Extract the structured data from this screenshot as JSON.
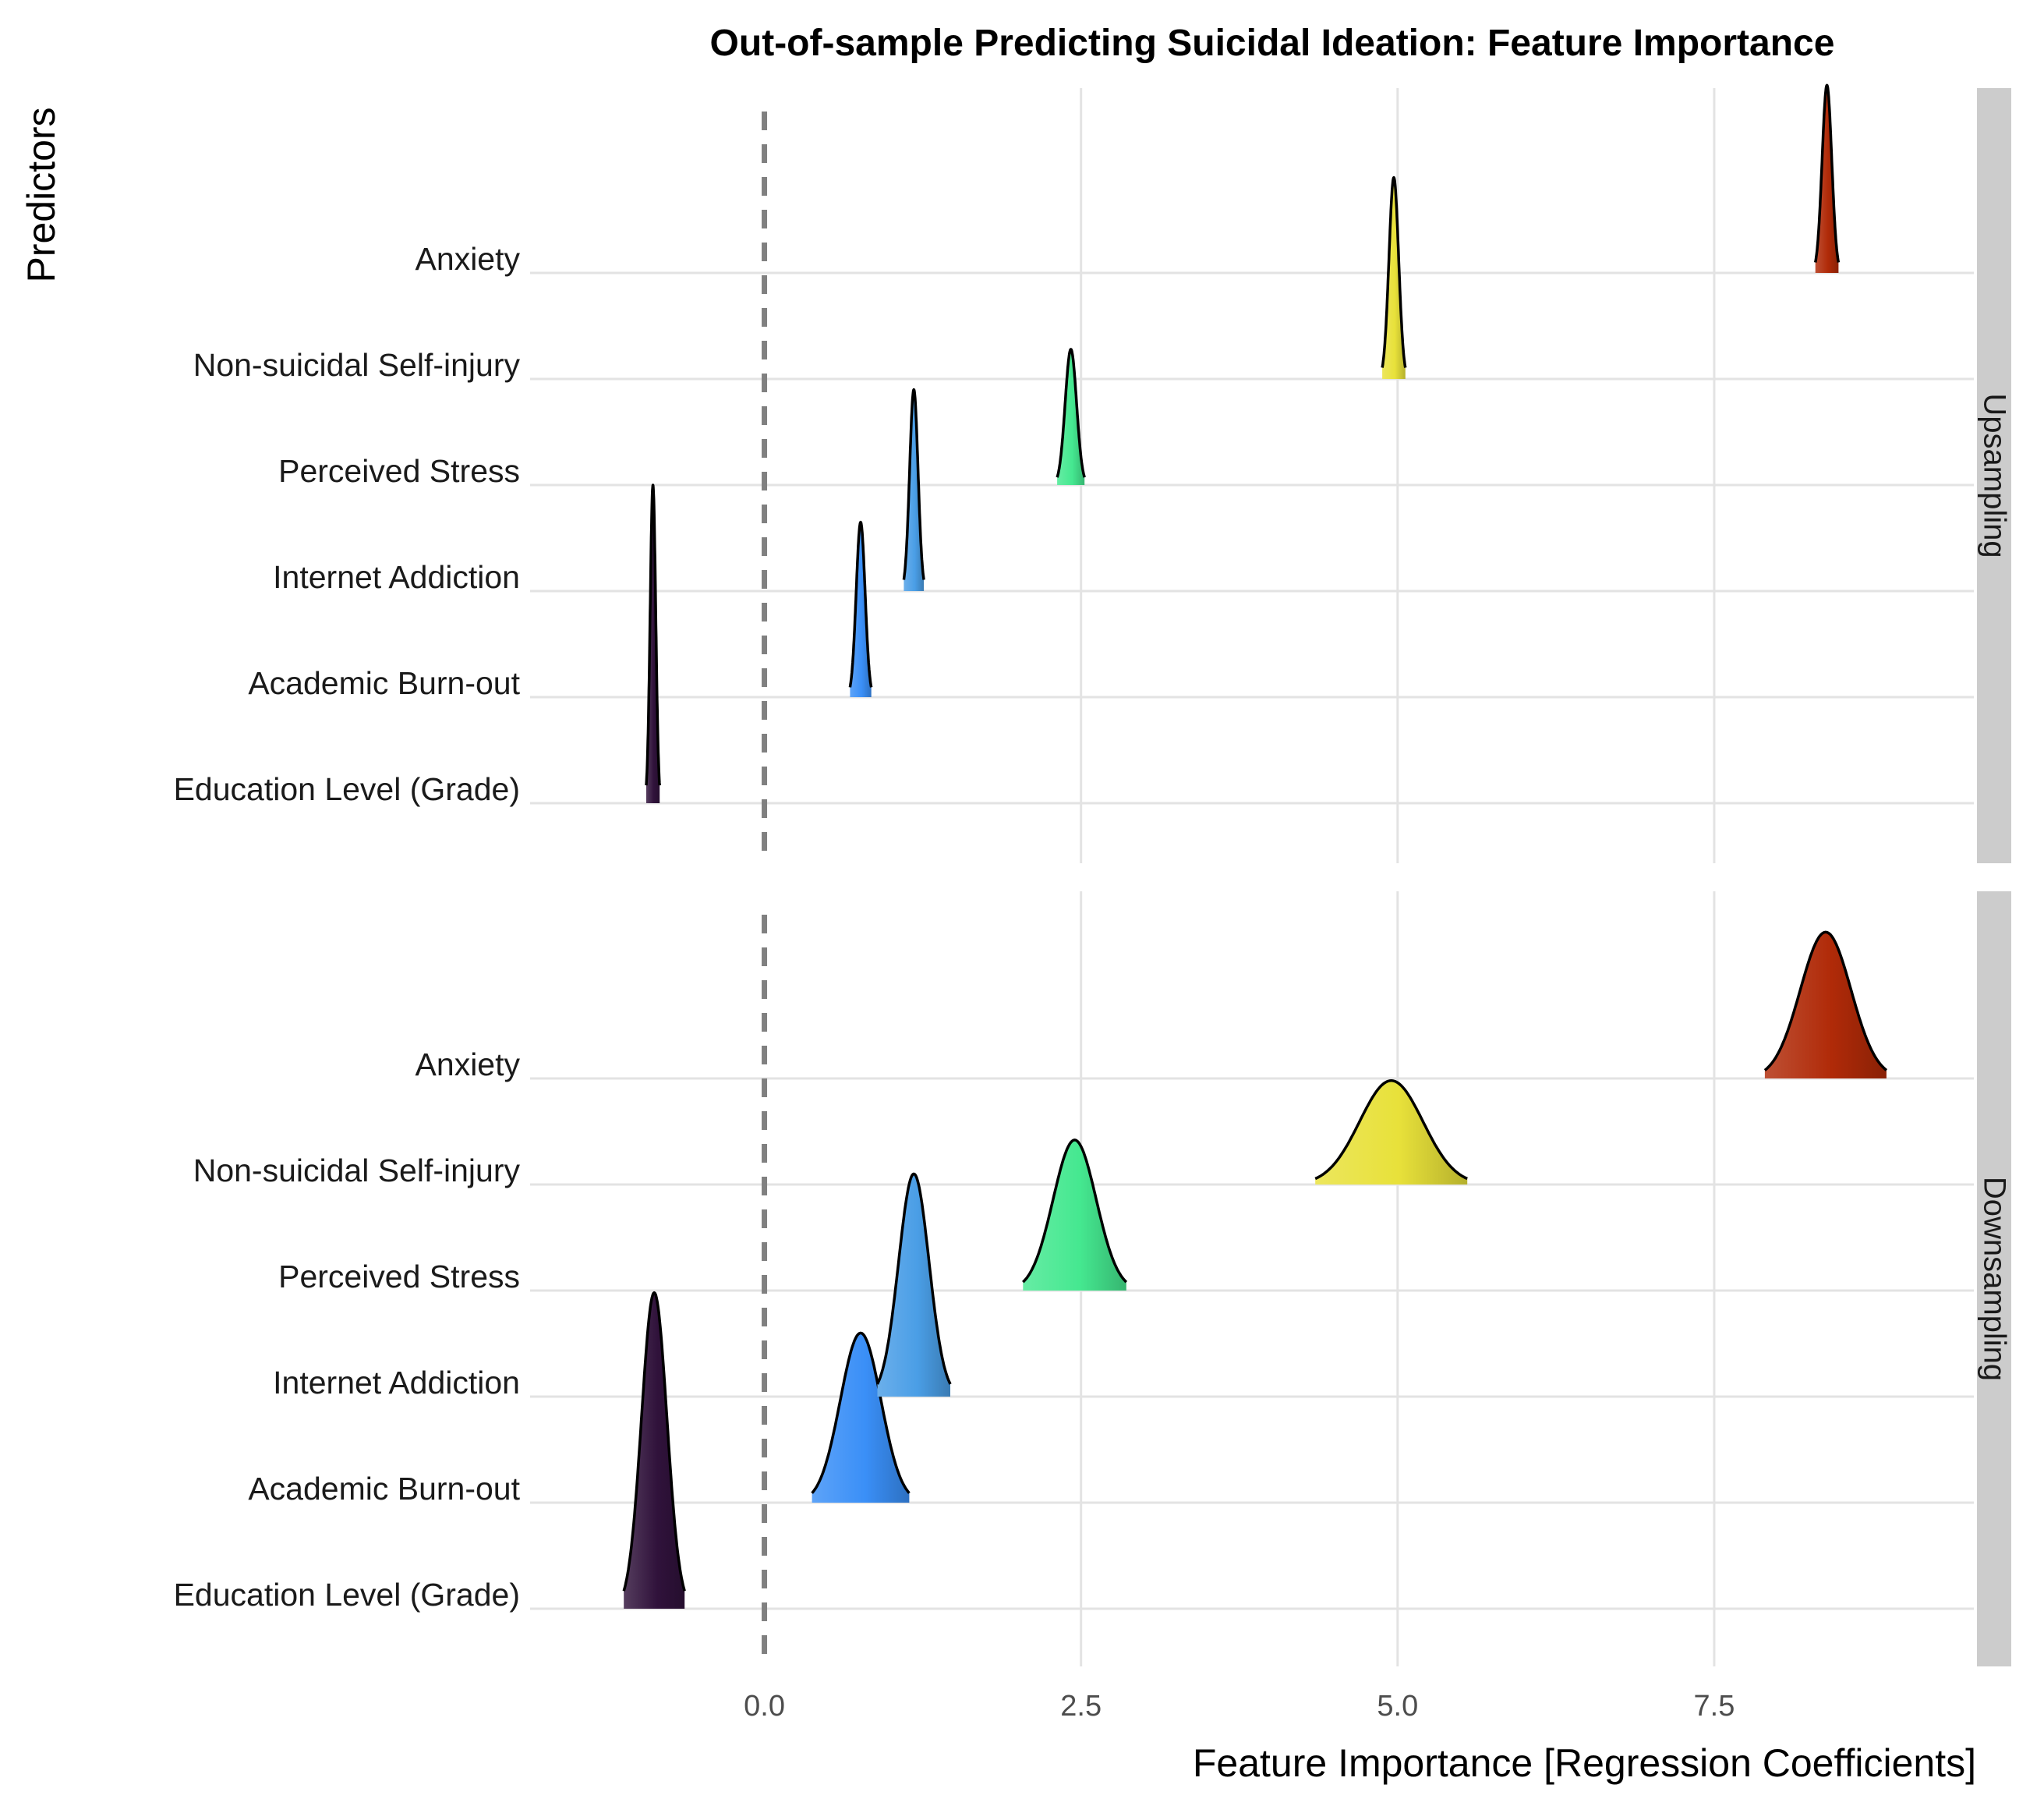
{
  "chart_data": {
    "type": "ridgeline",
    "title": "Out-of-sample Predicting Suicidal Ideation: Feature Importance",
    "xlabel": "Feature Importance [Regression Coefficients]",
    "ylabel": "Predictors",
    "xlim": [
      -1.85,
      9.55
    ],
    "xticks": [
      0.0,
      2.5,
      5.0,
      7.5
    ],
    "xtick_labels": [
      "0.0",
      "2.5",
      "5.0",
      "7.5"
    ],
    "reference_line": {
      "x": 0,
      "style": "dashed",
      "color": "#808080"
    },
    "grid": true,
    "categories": [
      "Education Level (Grade)",
      "Academic Burn-out",
      "Internet Addiction",
      "Perceived Stress",
      "Non-suicidal Self-injury",
      "Anxiety"
    ],
    "colors": {
      "Education Level (Grade)": "#30123b",
      "Academic Burn-out": "#3a8ff7",
      "Internet Addiction": "#4a9ee6",
      "Perceived Stress": "#45e890",
      "Non-suicidal Self-injury": "#e8e13a",
      "Anxiety": "#b02a08"
    },
    "panels": [
      {
        "name": "Upsampling",
        "series": [
          {
            "name": "Education Level (Grade)",
            "mean": -0.88,
            "spread": 0.022,
            "peak_rows": 3.0
          },
          {
            "name": "Academic Burn-out",
            "mean": 0.76,
            "spread": 0.035,
            "peak_rows": 1.65
          },
          {
            "name": "Internet Addiction",
            "mean": 1.18,
            "spread": 0.033,
            "peak_rows": 1.9
          },
          {
            "name": "Perceived Stress",
            "mean": 2.42,
            "spread": 0.045,
            "peak_rows": 1.28
          },
          {
            "name": "Non-suicidal Self-injury",
            "mean": 4.97,
            "spread": 0.038,
            "peak_rows": 1.9
          },
          {
            "name": "Anxiety",
            "mean": 8.39,
            "spread": 0.038,
            "peak_rows": 1.77
          }
        ]
      },
      {
        "name": "Downsampling",
        "series": [
          {
            "name": "Education Level (Grade)",
            "mean": -0.87,
            "spread": 0.1,
            "peak_rows": 2.98
          },
          {
            "name": "Academic Burn-out",
            "mean": 0.76,
            "spread": 0.16,
            "peak_rows": 1.6
          },
          {
            "name": "Internet Addiction",
            "mean": 1.18,
            "spread": 0.12,
            "peak_rows": 2.1
          },
          {
            "name": "Perceived Stress",
            "mean": 2.45,
            "spread": 0.17,
            "peak_rows": 1.42
          },
          {
            "name": "Non-suicidal Self-injury",
            "mean": 4.95,
            "spread": 0.25,
            "peak_rows": 0.98
          },
          {
            "name": "Anxiety",
            "mean": 8.38,
            "spread": 0.2,
            "peak_rows": 1.38
          }
        ]
      }
    ]
  }
}
